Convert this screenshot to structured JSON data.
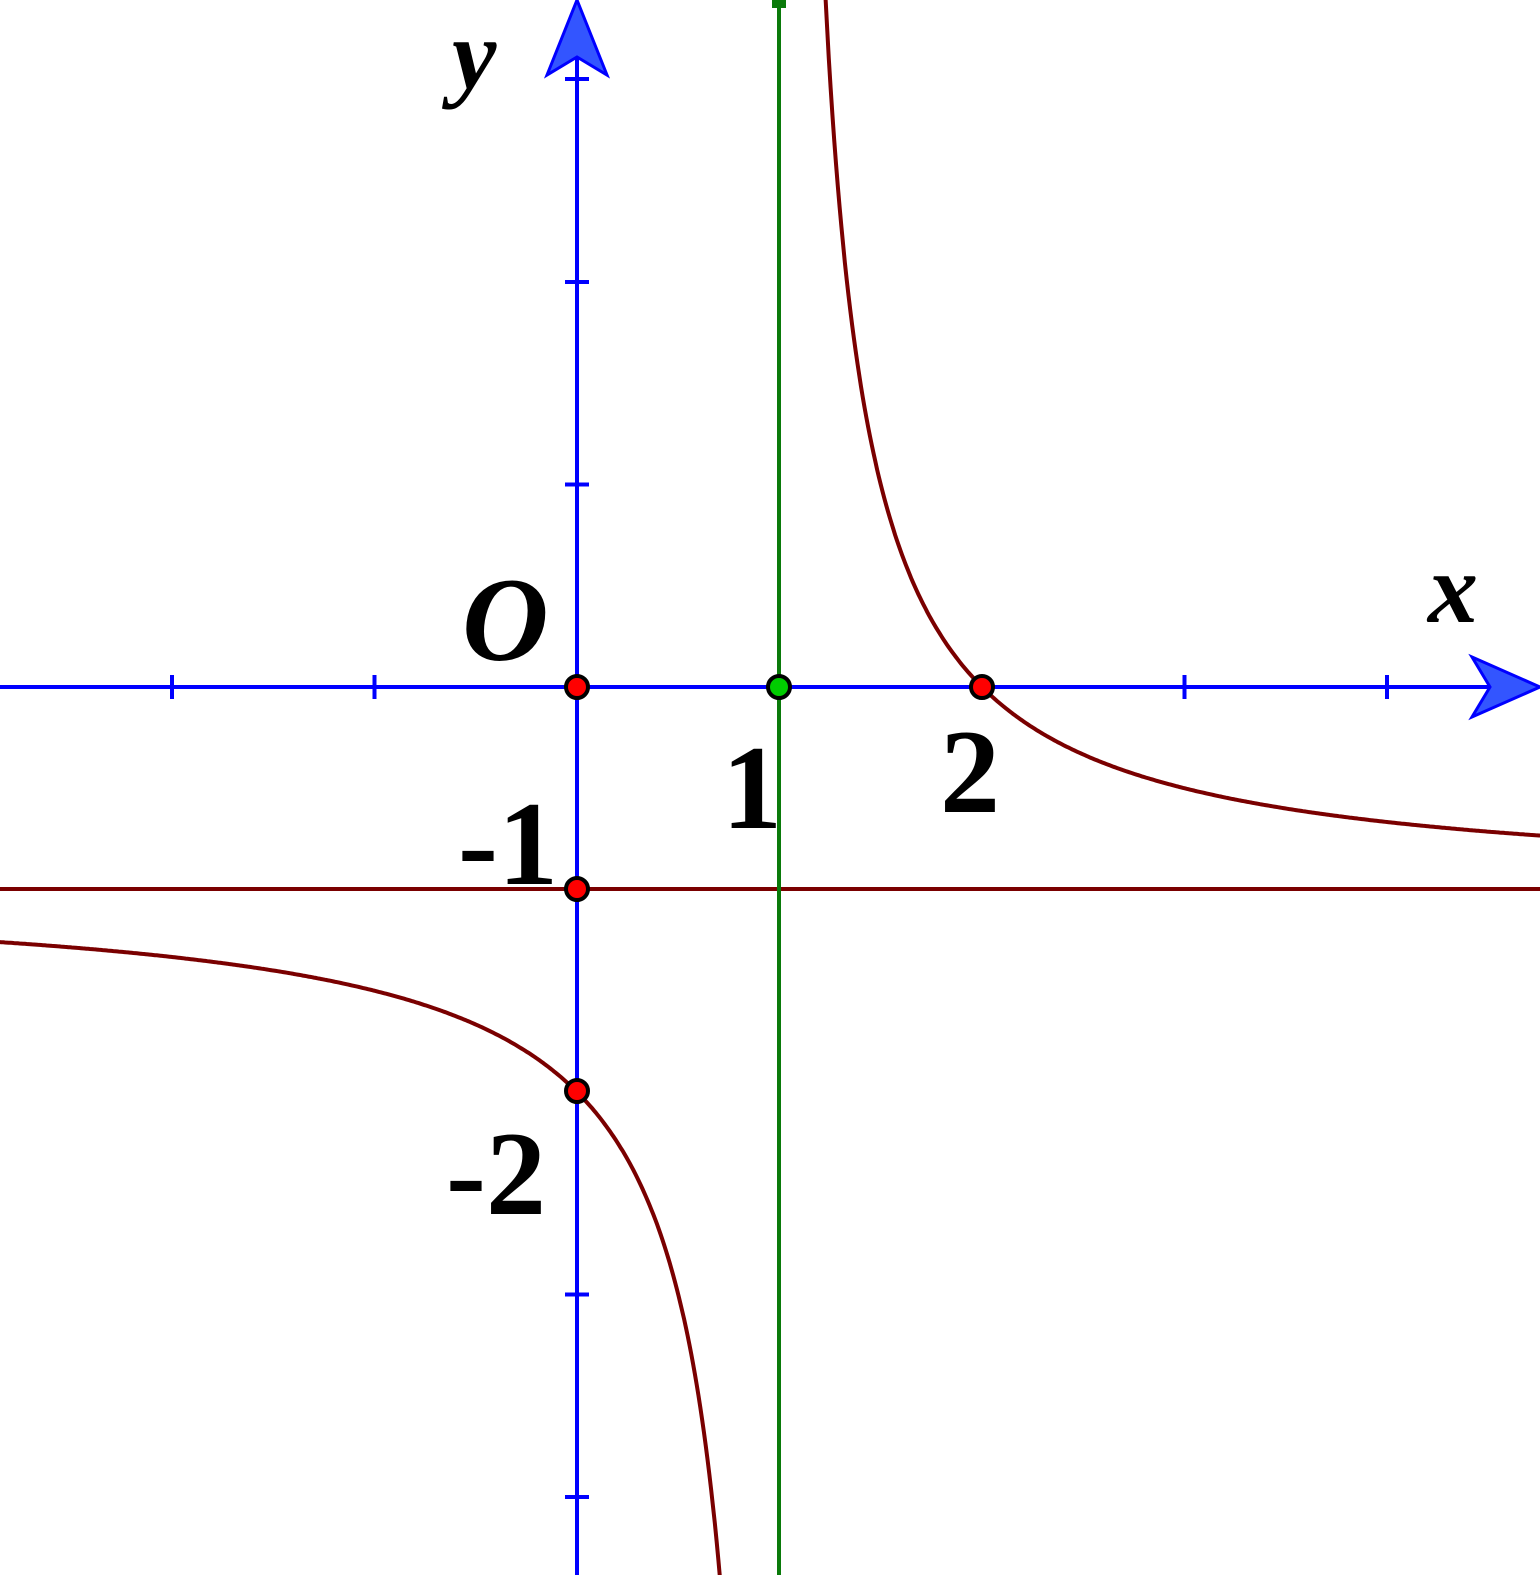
{
  "axes": {
    "x_label": "x",
    "y_label": "y",
    "origin_label": "O"
  },
  "tick_labels": {
    "x": [
      "1",
      "2"
    ],
    "y": [
      "-1",
      "-2"
    ]
  }
}
